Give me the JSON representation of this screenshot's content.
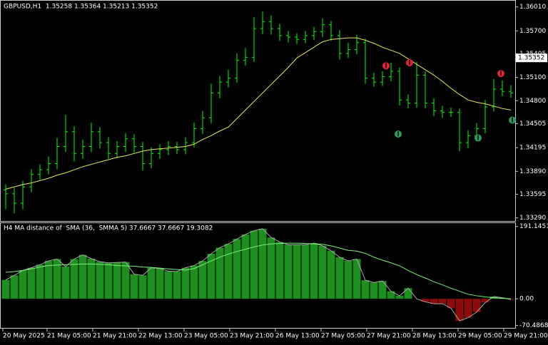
{
  "chart_data": [
    {
      "type": "ohlc",
      "title": "GBPUSD,H1  1.35258 1.35364 1.35213 1.35352",
      "color": "#00ff00",
      "sma_color": "#e8e85a",
      "x": [
        0,
        3,
        6,
        9,
        12,
        15,
        18,
        21,
        24,
        27,
        30,
        33,
        36,
        39,
        42,
        45,
        48,
        51,
        54,
        57,
        60,
        63,
        66,
        69,
        72,
        75,
        78,
        81,
        84,
        87,
        90,
        93,
        96,
        99,
        102,
        105,
        108,
        111,
        114,
        117,
        120,
        123,
        126,
        129,
        132,
        135,
        138,
        141,
        144,
        147,
        150,
        153,
        156,
        159,
        162,
        165,
        168,
        171,
        174,
        177
      ],
      "open": [
        1.3365,
        1.336,
        1.3348,
        1.3369,
        1.3385,
        1.3391,
        1.3399,
        1.3421,
        1.344,
        1.3412,
        1.3421,
        1.344,
        1.3426,
        1.3412,
        1.3421,
        1.3431,
        1.3421,
        1.3399,
        1.3412,
        1.3417,
        1.3421,
        1.3417,
        1.3426,
        1.3444,
        1.3458,
        1.349,
        1.3504,
        1.3509,
        1.3532,
        1.3536,
        1.3573,
        1.3582,
        1.3573,
        1.3564,
        1.3562,
        1.3559,
        1.3564,
        1.3569,
        1.3578,
        1.3564,
        1.3541,
        1.3546,
        1.3555,
        1.3509,
        1.3504,
        1.3511,
        1.3518,
        1.3481,
        1.3477,
        1.3513,
        1.3477,
        1.3467,
        1.3465,
        1.3465,
        1.3426,
        1.3435,
        1.3444,
        1.3472,
        1.3495,
        1.3492
      ],
      "high": [
        1.3372,
        1.3368,
        1.3377,
        1.3392,
        1.3398,
        1.3408,
        1.3432,
        1.3462,
        1.3447,
        1.343,
        1.3452,
        1.3446,
        1.3433,
        1.3428,
        1.3438,
        1.3437,
        1.3427,
        1.342,
        1.3424,
        1.3428,
        1.3427,
        1.3433,
        1.3452,
        1.3467,
        1.3502,
        1.3512,
        1.352,
        1.3541,
        1.3548,
        1.3588,
        1.3595,
        1.359,
        1.3579,
        1.357,
        1.3567,
        1.357,
        1.3575,
        1.3586,
        1.3583,
        1.3571,
        1.3555,
        1.3565,
        1.356,
        1.3516,
        1.3518,
        1.3529,
        1.3523,
        1.3488,
        1.353,
        1.3518,
        1.3483,
        1.3473,
        1.3471,
        1.347,
        1.3442,
        1.3451,
        1.3481,
        1.3508,
        1.3506,
        1.35
      ],
      "low": [
        1.334,
        1.3335,
        1.334,
        1.3362,
        1.3378,
        1.3385,
        1.3392,
        1.3414,
        1.3402,
        1.3405,
        1.3414,
        1.3418,
        1.3405,
        1.3406,
        1.3414,
        1.3413,
        1.339,
        1.3393,
        1.3405,
        1.341,
        1.3411,
        1.3411,
        1.342,
        1.3437,
        1.3451,
        1.3483,
        1.3497,
        1.3503,
        1.3525,
        1.353,
        1.3566,
        1.3565,
        1.3557,
        1.3555,
        1.3553,
        1.3554,
        1.3558,
        1.3562,
        1.3557,
        1.3533,
        1.3535,
        1.354,
        1.3502,
        1.3498,
        1.3499,
        1.3505,
        1.3474,
        1.347,
        1.3471,
        1.347,
        1.346,
        1.3458,
        1.3459,
        1.3415,
        1.3419,
        1.3429,
        1.3438,
        1.3466,
        1.3486,
        1.3484
      ],
      "close": [
        1.336,
        1.3348,
        1.3369,
        1.3385,
        1.3391,
        1.3399,
        1.3421,
        1.344,
        1.3412,
        1.3421,
        1.344,
        1.3426,
        1.3412,
        1.3421,
        1.3431,
        1.3421,
        1.3399,
        1.3412,
        1.3417,
        1.3421,
        1.3417,
        1.3426,
        1.3444,
        1.3458,
        1.349,
        1.3504,
        1.3509,
        1.3532,
        1.3536,
        1.3573,
        1.3582,
        1.3573,
        1.3564,
        1.3562,
        1.3559,
        1.3564,
        1.3569,
        1.3578,
        1.3564,
        1.3541,
        1.3546,
        1.3555,
        1.3509,
        1.3504,
        1.3511,
        1.3518,
        1.3481,
        1.3477,
        1.3513,
        1.3477,
        1.3467,
        1.3465,
        1.3465,
        1.3426,
        1.3435,
        1.3444,
        1.3472,
        1.3495,
        1.3492,
        1.349
      ],
      "sma": [
        1.3366,
        1.3369,
        1.3372,
        1.3374,
        1.3377,
        1.338,
        1.3384,
        1.3387,
        1.3391,
        1.3395,
        1.3398,
        1.3401,
        1.3404,
        1.3407,
        1.3409,
        1.3412,
        1.3415,
        1.3417,
        1.3418,
        1.3419,
        1.342,
        1.3421,
        1.3424,
        1.343,
        1.3435,
        1.3441,
        1.3446,
        1.3457,
        1.3468,
        1.3479,
        1.349,
        1.3501,
        1.3512,
        1.3523,
        1.3535,
        1.3542,
        1.3549,
        1.3556,
        1.3559,
        1.356,
        1.3561,
        1.3561,
        1.3558,
        1.3554,
        1.3549,
        1.3545,
        1.3541,
        1.3534,
        1.3527,
        1.352,
        1.3513,
        1.3505,
        1.3496,
        1.3488,
        1.3481,
        1.3478,
        1.3476,
        1.3473,
        1.347,
        1.3468
      ],
      "signals": [
        {
          "x": 134.75,
          "value": 1.3525,
          "color": "#e0243c"
        },
        {
          "x": 143,
          "value": 1.3529,
          "color": "#e0243c"
        },
        {
          "x": 175,
          "value": 1.3515,
          "color": "#e0243c"
        },
        {
          "x": 139,
          "value": 1.3437,
          "color": "#2e9a5e"
        },
        {
          "x": 167,
          "value": 1.3432,
          "color": "#2e9a5e"
        },
        {
          "x": 179,
          "value": 1.3455,
          "color": "#2e9a5e"
        }
      ],
      "last_price": 1.35352,
      "xlim": [
        0,
        180
      ],
      "ylim": [
        1.3325,
        1.3608
      ],
      "yticks": [
        {
          "value": 1.3601,
          "label": "1.36010"
        },
        {
          "value": 1.357,
          "label": "1.35700"
        },
        1.35405,
        {
          "value": 1.351,
          "label": "1.35100"
        },
        {
          "value": 1.348,
          "label": "1.34800"
        },
        1.34505,
        1.34195,
        {
          "value": 1.3389,
          "label": "1.33890"
        },
        1.33595,
        {
          "value": 1.3329,
          "label": "1.33290"
        }
      ]
    },
    {
      "type": "bar",
      "title": "H4 MA distance of  SMA (36,  SMMA 5) 37.6667 37.6667 19.3082",
      "up_color": "#1e8f1e",
      "down_color": "#8b0a0a",
      "outline_color": "#a8a8a8",
      "signal_color": "#7cf07c",
      "x": [
        0,
        3,
        6,
        9,
        12,
        15,
        18,
        21,
        24,
        27,
        30,
        33,
        36,
        39,
        42,
        45,
        48,
        51,
        54,
        57,
        60,
        63,
        66,
        69,
        72,
        75,
        78,
        81,
        84,
        87,
        90,
        93,
        96,
        99,
        102,
        105,
        108,
        111,
        114,
        117,
        120,
        123,
        126,
        129,
        132,
        135,
        138,
        141,
        144,
        147,
        150,
        153,
        156,
        159,
        162,
        165,
        168,
        171,
        174,
        177
      ],
      "values": [
        50,
        62,
        75,
        82,
        90,
        100,
        105,
        85,
        105,
        116,
        106,
        98,
        95,
        96,
        97,
        65,
        62,
        82,
        80,
        73,
        72,
        82,
        88,
        100,
        119,
        135,
        145,
        158,
        170,
        180,
        185,
        162,
        150,
        143,
        143,
        143,
        147,
        140,
        127,
        110,
        100,
        105,
        49,
        43,
        47,
        20,
        8,
        28,
        0,
        -8,
        -13,
        -13,
        -25,
        -58,
        -50,
        -35,
        -10,
        6,
        3,
        -2
      ],
      "signal": [
        70,
        72,
        75,
        79,
        84,
        88,
        89,
        90,
        91,
        92,
        92,
        91,
        90,
        88,
        87,
        86,
        84,
        83,
        81,
        79,
        77,
        76,
        80,
        90,
        100,
        110,
        118,
        125,
        131,
        137,
        142,
        145,
        146,
        147,
        147,
        146,
        145,
        144,
        140,
        134,
        128,
        126,
        120,
        110,
        102,
        95,
        87,
        75,
        64,
        55,
        45,
        37,
        28,
        20,
        12,
        8,
        5,
        3,
        1,
        0
      ],
      "xlim": [
        0,
        180
      ],
      "ylim": [
        -75,
        200
      ],
      "yticks": [
        191.1451,
        {
          "value": 0,
          "label": "0.00"
        },
        -70.4868
      ],
      "xticks": [
        {
          "value": 0.5,
          "label": "20 May 2025"
        },
        {
          "value": 16,
          "label": "21 May 05:00"
        },
        {
          "value": 32,
          "label": "21 May 21:00"
        },
        {
          "value": 48,
          "label": "22 May 13:00"
        },
        {
          "value": 64,
          "label": "23 May 05:00"
        },
        {
          "value": 80,
          "label": "23 May 21:00"
        },
        {
          "value": 96,
          "label": "26 May 13:00"
        },
        {
          "value": 112,
          "label": "27 May 05:00"
        },
        {
          "value": 128,
          "label": "27 May 21:00"
        },
        {
          "value": 144,
          "label": "28 May 13:00"
        },
        {
          "value": 160,
          "label": "29 May 05:00"
        },
        {
          "value": 176,
          "label": "29 May 21:00"
        }
      ]
    }
  ]
}
